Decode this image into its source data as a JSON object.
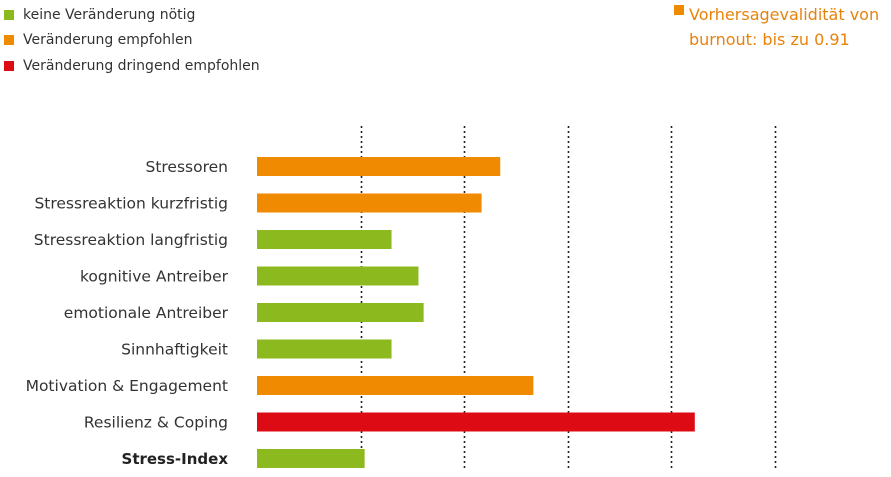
{
  "legend": [
    {
      "label": "keine Veränderung nötig",
      "color": "#8cba1e"
    },
    {
      "label": "Veränderung empfohlen",
      "color": "#f08a00"
    },
    {
      "label": "Veränderung dringend empfohlen",
      "color": "#dd0b14"
    }
  ],
  "note": {
    "color": "#f08a00",
    "text": "Vorhersagevalidität von burnout: bis zu 0.91"
  },
  "chart_data": {
    "type": "bar",
    "orientation": "horizontal",
    "categories": [
      "Stressoren",
      "Stressreaktion kurzfristig",
      "Stressreaktion langfristig",
      "kognitive Antreiber",
      "emotionale Antreiber",
      "Sinnhaftigkeit",
      "Motivation & Engagement",
      "Resilienz & Coping",
      "Stress-Index"
    ],
    "values": [
      2.35,
      2.17,
      1.3,
      1.56,
      1.61,
      1.3,
      2.67,
      4.23,
      1.04
    ],
    "status": [
      "empfohlen",
      "empfohlen",
      "keine",
      "keine",
      "keine",
      "keine",
      "empfohlen",
      "dringend",
      "keine"
    ],
    "colors": {
      "keine": "#8cba1e",
      "empfohlen": "#f08a00",
      "dringend": "#dd0b14"
    },
    "xlim": [
      0,
      5
    ],
    "gridlines": [
      1,
      2,
      3,
      4,
      5
    ],
    "grid_style": "dotted vertical",
    "bold_categories": [
      "Stress-Index"
    ],
    "legend_position": "top-left",
    "title": "",
    "xlabel": "",
    "ylabel": ""
  }
}
